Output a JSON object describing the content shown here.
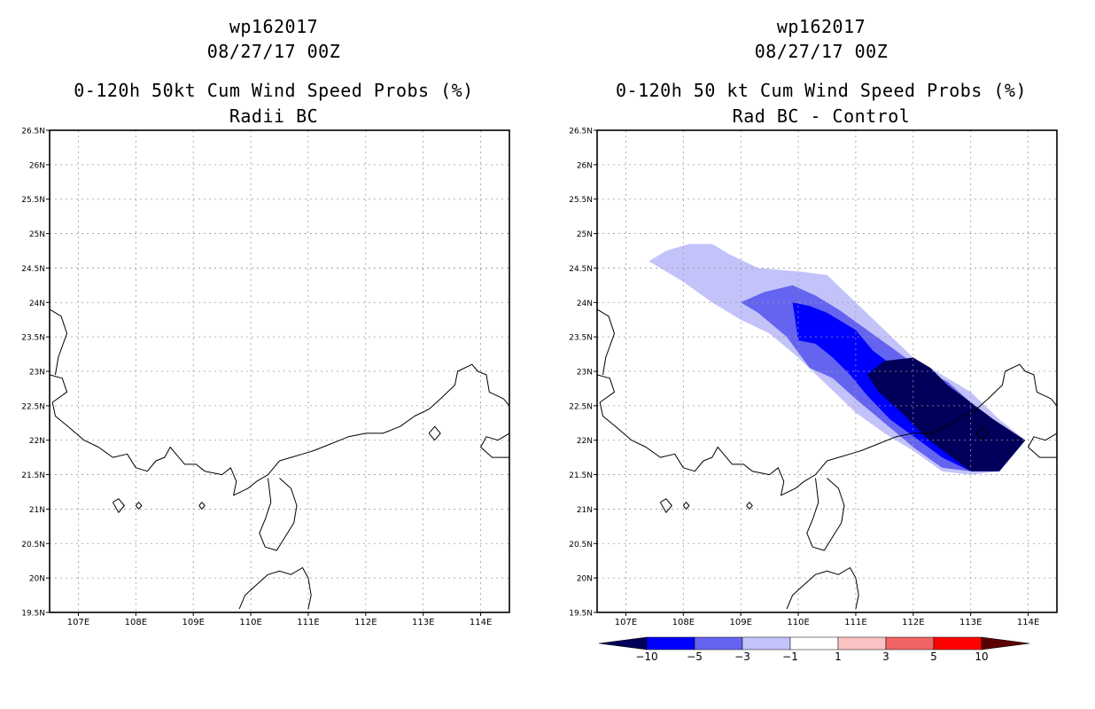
{
  "panels": [
    {
      "storm_id": "wp162017",
      "datetime": "08/27/17 00Z",
      "title": "0-120h 50kt Cum Wind Speed Probs (%)",
      "subtitle": "Radii BC"
    },
    {
      "storm_id": "wp162017",
      "datetime": "08/27/17 00Z",
      "title": "0-120h 50 kt Cum Wind Speed Probs (%)",
      "subtitle": "Rad BC - Control"
    }
  ],
  "colors": {
    "minus10": "#00005a",
    "minus5": "#0000ff",
    "minus3": "#6464f0",
    "minus1": "#c3c3fa",
    "zero": "#ffffff",
    "plus1": "#fac3c3",
    "plus3": "#f06464",
    "plus5": "#ff0000",
    "plus10": "#5a0000"
  },
  "chart_data": [
    {
      "type": "map",
      "title": "0-120h 50kt Cum Wind Speed Probs (%)",
      "subtitle": "Radii BC",
      "x_ticks": [
        "107E",
        "108E",
        "109E",
        "110E",
        "111E",
        "112E",
        "113E",
        "114E"
      ],
      "y_ticks": [
        "26.5N",
        "26N",
        "25.5N",
        "25N",
        "24.5N",
        "24N",
        "23.5N",
        "23N",
        "22.5N",
        "22N",
        "21.5N",
        "21N",
        "20.5N",
        "20N",
        "19.5N"
      ],
      "lon_range": [
        106.5,
        114.5
      ],
      "lat_range": [
        19.5,
        26.5
      ],
      "contours": []
    },
    {
      "type": "map",
      "title": "0-120h 50 kt Cum Wind Speed Probs (%)",
      "subtitle": "Rad BC - Control",
      "x_ticks": [
        "107E",
        "108E",
        "109E",
        "110E",
        "111E",
        "112E",
        "113E",
        "114E"
      ],
      "y_ticks": [
        "26.5N",
        "26N",
        "25.5N",
        "25N",
        "24.5N",
        "24N",
        "23.5N",
        "23N",
        "22.5N",
        "22N",
        "21.5N",
        "21N",
        "20.5N",
        "20N",
        "19.5N"
      ],
      "lon_range": [
        106.5,
        114.5
      ],
      "lat_range": [
        19.5,
        26.5
      ],
      "contours": [
        {
          "level": "-1",
          "color_key": "minus1",
          "polygon": [
            [
              107.4,
              24.6
            ],
            [
              107.7,
              24.75
            ],
            [
              108.1,
              24.85
            ],
            [
              108.5,
              24.85
            ],
            [
              108.8,
              24.7
            ],
            [
              109.3,
              24.5
            ],
            [
              110.0,
              24.45
            ],
            [
              110.5,
              24.4
            ],
            [
              111.0,
              24.0
            ],
            [
              111.5,
              23.6
            ],
            [
              112.0,
              23.2
            ],
            [
              112.5,
              22.95
            ],
            [
              113.0,
              22.7
            ],
            [
              113.5,
              22.3
            ],
            [
              113.95,
              22.0
            ],
            [
              113.5,
              21.55
            ],
            [
              113.0,
              21.5
            ],
            [
              112.5,
              21.55
            ],
            [
              112.0,
              21.85
            ],
            [
              111.5,
              22.1
            ],
            [
              111.0,
              22.4
            ],
            [
              110.5,
              22.8
            ],
            [
              110.0,
              23.2
            ],
            [
              109.5,
              23.55
            ],
            [
              109.0,
              23.75
            ],
            [
              108.5,
              24.0
            ],
            [
              108.0,
              24.3
            ],
            [
              107.4,
              24.6
            ]
          ]
        },
        {
          "level": "-3",
          "color_key": "minus3",
          "polygon": [
            [
              109.0,
              24.0
            ],
            [
              109.4,
              24.15
            ],
            [
              109.9,
              24.25
            ],
            [
              110.3,
              24.1
            ],
            [
              110.7,
              23.9
            ],
            [
              111.2,
              23.6
            ],
            [
              111.7,
              23.3
            ],
            [
              112.1,
              23.05
            ],
            [
              112.6,
              22.85
            ],
            [
              113.0,
              22.55
            ],
            [
              113.5,
              22.2
            ],
            [
              113.95,
              22.0
            ],
            [
              113.5,
              21.55
            ],
            [
              113.0,
              21.55
            ],
            [
              112.5,
              21.6
            ],
            [
              112.0,
              21.9
            ],
            [
              111.5,
              22.25
            ],
            [
              111.0,
              22.6
            ],
            [
              110.6,
              22.9
            ],
            [
              110.2,
              23.05
            ],
            [
              109.8,
              23.5
            ],
            [
              109.3,
              23.85
            ],
            [
              109.0,
              24.0
            ]
          ]
        },
        {
          "level": "-5",
          "color_key": "minus5",
          "polygon": [
            [
              109.9,
              24.0
            ],
            [
              110.2,
              23.95
            ],
            [
              110.5,
              23.85
            ],
            [
              111.0,
              23.6
            ],
            [
              111.3,
              23.3
            ],
            [
              111.7,
              23.05
            ],
            [
              112.1,
              22.8
            ],
            [
              112.6,
              22.55
            ],
            [
              113.1,
              22.35
            ],
            [
              113.5,
              22.1
            ],
            [
              113.95,
              22.0
            ],
            [
              113.5,
              21.55
            ],
            [
              113.0,
              21.55
            ],
            [
              112.5,
              21.75
            ],
            [
              112.1,
              22.0
            ],
            [
              111.6,
              22.3
            ],
            [
              111.2,
              22.65
            ],
            [
              110.9,
              22.95
            ],
            [
              110.6,
              23.2
            ],
            [
              110.3,
              23.4
            ],
            [
              110.0,
              23.45
            ],
            [
              109.9,
              24.0
            ]
          ]
        },
        {
          "level": "-10",
          "color_key": "minus10",
          "polygon": [
            [
              111.2,
              22.95
            ],
            [
              111.5,
              23.15
            ],
            [
              112.0,
              23.2
            ],
            [
              112.3,
              23.05
            ],
            [
              112.6,
              22.8
            ],
            [
              113.0,
              22.55
            ],
            [
              113.4,
              22.3
            ],
            [
              113.95,
              22.0
            ],
            [
              113.5,
              21.55
            ],
            [
              113.0,
              21.55
            ],
            [
              112.6,
              21.8
            ],
            [
              112.2,
              22.05
            ],
            [
              111.8,
              22.4
            ],
            [
              111.4,
              22.7
            ],
            [
              111.2,
              22.95
            ]
          ]
        }
      ],
      "colorbar": {
        "colors": [
          "minus10",
          "minus5",
          "minus3",
          "minus1",
          "zero",
          "plus1",
          "plus3",
          "plus5",
          "plus10"
        ],
        "labels": [
          "-10",
          "-5",
          "-3",
          "-1",
          "1",
          "3",
          "5",
          "10"
        ]
      }
    }
  ]
}
